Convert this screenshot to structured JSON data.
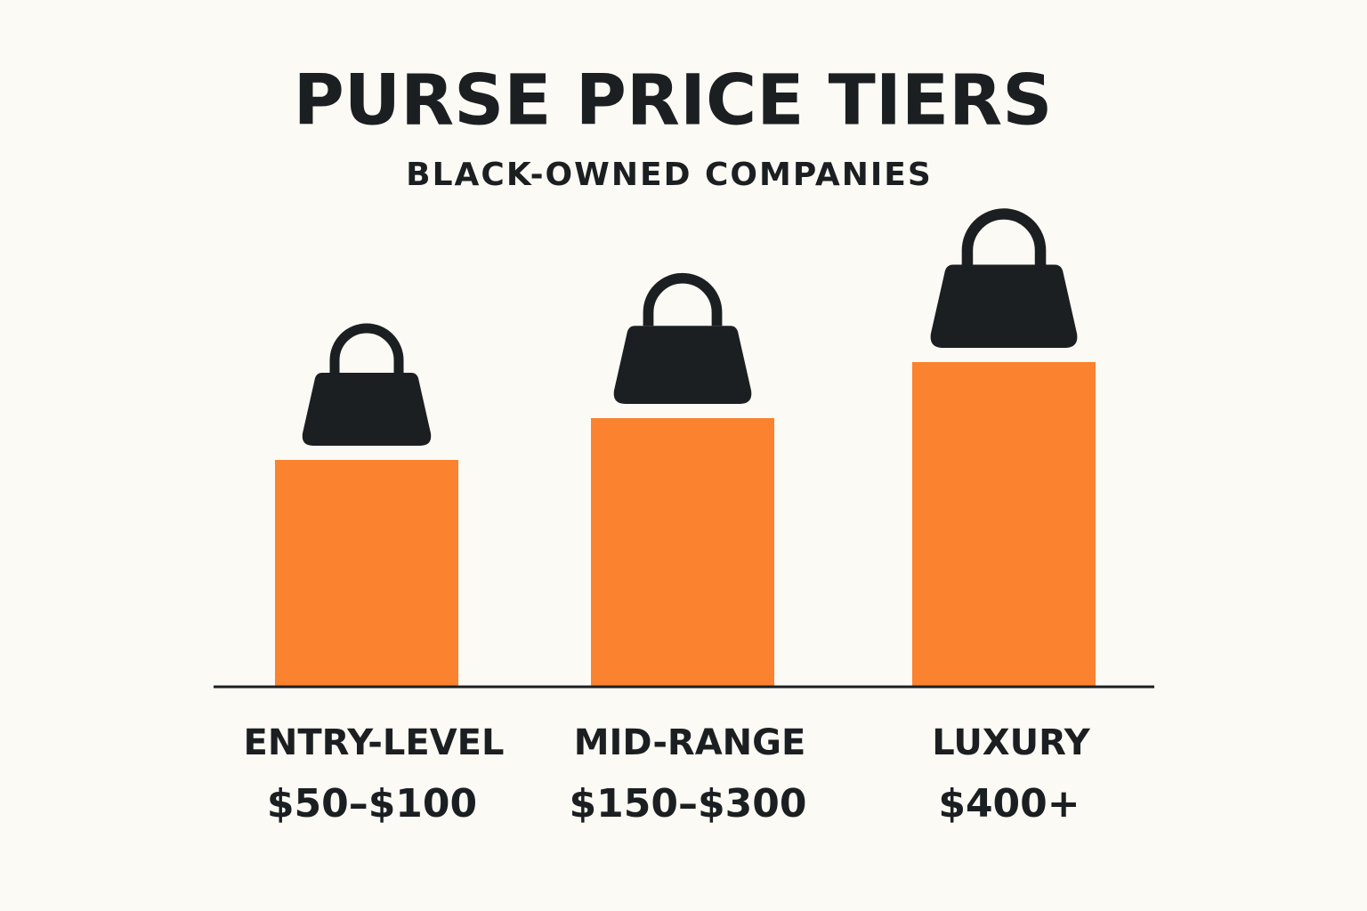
{
  "chart_data": {
    "type": "bar",
    "title": "PURSE PRICE TIERS",
    "subtitle": "BLACK-OWNED COMPANIES",
    "categories": [
      "ENTRY-LEVEL",
      "MID-RANGE",
      "LUXURY"
    ],
    "price_ranges": [
      "$50–$100",
      "$150–$300",
      "$400+"
    ],
    "values": [
      255,
      302,
      365
    ],
    "color": "#fb822f",
    "ylim": [
      0,
      500
    ]
  }
}
